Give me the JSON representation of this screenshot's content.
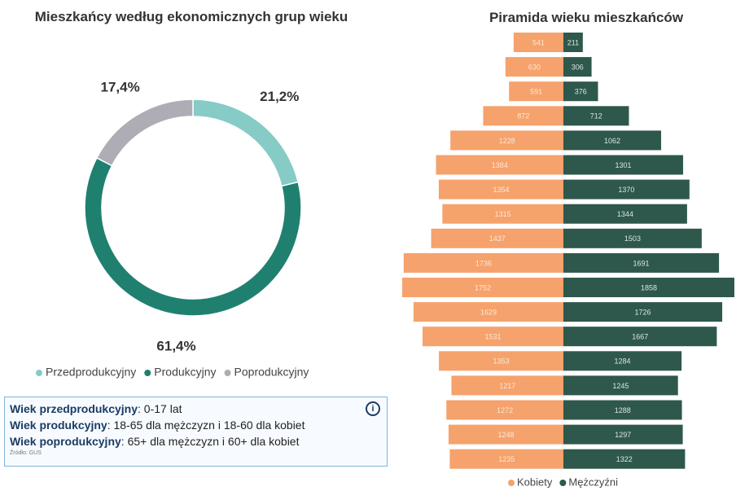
{
  "chart_data": [
    {
      "type": "pie",
      "title": "Mieszkańcy według ekonomicznych grup wieku",
      "categories": [
        "Przedprodukcyjny",
        "Produkcyjny",
        "Poprodukcyjny"
      ],
      "values": [
        21.2,
        61.4,
        17.4
      ],
      "value_labels": [
        "21,2%",
        "61,4%",
        "17,4%"
      ],
      "colors": [
        "#86cbc6",
        "#1f8070",
        "#aeadb6"
      ]
    },
    {
      "type": "pyramid",
      "title": "Piramida wieku mieszkańców",
      "categories": [
        null,
        null,
        null,
        null,
        null,
        null,
        null,
        null,
        null,
        null,
        null,
        null,
        null,
        null,
        null,
        null,
        null,
        null
      ],
      "series": [
        {
          "name": "Kobiety",
          "color": "#f5a26c",
          "values": [
            541,
            630,
            591,
            872,
            1228,
            1384,
            1354,
            1315,
            1437,
            1736,
            1752,
            1629,
            1531,
            1353,
            1217,
            1272,
            1248,
            1235
          ]
        },
        {
          "name": "Mężczyźni",
          "color": "#2e584c",
          "values": [
            211,
            306,
            376,
            712,
            1062,
            1301,
            1370,
            1344,
            1503,
            1691,
            1858,
            1726,
            1667,
            1284,
            1245,
            1288,
            1297,
            1322
          ]
        }
      ]
    }
  ],
  "info": {
    "lines": [
      {
        "label": "Wiek przedprodukcyjny",
        "text": ": 0-17 lat"
      },
      {
        "label": "Wiek produkcyjny",
        "text": ": 18-65 dla mężczyzn i 18-60 dla kobiet"
      },
      {
        "label": "Wiek poprodukcyjny",
        "text": ": 65+ dla mężczyzn i 60+ dla kobiet"
      }
    ],
    "source": "Źródło: GUS"
  }
}
